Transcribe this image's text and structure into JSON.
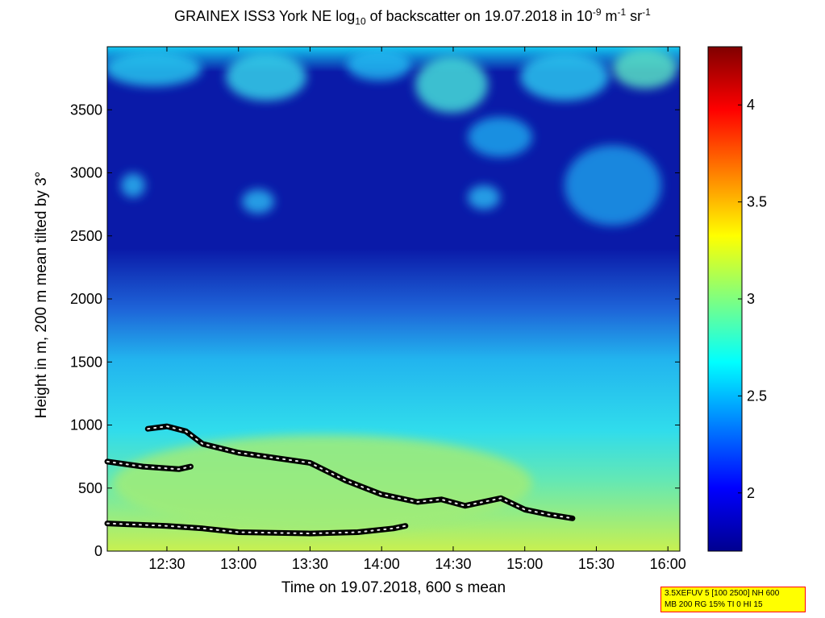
{
  "title": {
    "prefix": "GRAINEX ISS3 York NE log",
    "sub": "10",
    "middle": " of backscatter on 19.07.2018 in 10",
    "sup1": "-9",
    "mid2": " m",
    "sup2": "-1",
    "mid3": " sr",
    "sup3": "-1"
  },
  "info_box": {
    "line1": "3.5XEFUV 5 [100 2500] NH 600",
    "line2": "MB 200 RG 15% TI 0 HI 15"
  },
  "chart_data": {
    "type": "heatmap",
    "xlabel": "Time on 19.07.2018, 600 s mean",
    "ylabel": "Height in m, 200 m mean tilted by 3°",
    "xlim": [
      "12:05",
      "16:05"
    ],
    "ylim": [
      0,
      4000
    ],
    "x_ticks": [
      "12:30",
      "13:00",
      "13:30",
      "14:00",
      "14:30",
      "15:00",
      "15:30",
      "16:00"
    ],
    "y_ticks": [
      0,
      500,
      1000,
      1500,
      2000,
      2500,
      3000,
      3500
    ],
    "colorbar": {
      "range": [
        1.7,
        4.3
      ],
      "ticks": [
        2,
        2.5,
        3,
        3.5,
        4
      ],
      "colormap": "jet"
    },
    "layers": [
      {
        "name": "lower",
        "points": [
          [
            "12:05",
            220
          ],
          [
            "12:30",
            200
          ],
          [
            "12:45",
            180
          ],
          [
            "13:00",
            150
          ],
          [
            "13:30",
            140
          ],
          [
            "13:50",
            150
          ],
          [
            "14:05",
            180
          ],
          [
            "14:10",
            200
          ]
        ]
      },
      {
        "name": "middle",
        "points": [
          [
            "12:05",
            710
          ],
          [
            "12:20",
            670
          ],
          [
            "12:35",
            650
          ],
          [
            "12:40",
            670
          ]
        ]
      },
      {
        "name": "upper",
        "points": [
          [
            "12:22",
            970
          ],
          [
            "12:30",
            990
          ],
          [
            "12:38",
            950
          ],
          [
            "12:45",
            850
          ],
          [
            "13:00",
            780
          ],
          [
            "13:30",
            700
          ],
          [
            "13:45",
            560
          ],
          [
            "14:00",
            450
          ],
          [
            "14:15",
            390
          ],
          [
            "14:25",
            410
          ],
          [
            "14:35",
            360
          ],
          [
            "14:50",
            420
          ],
          [
            "15:00",
            330
          ],
          [
            "15:10",
            290
          ],
          [
            "15:20",
            260
          ]
        ]
      }
    ]
  }
}
